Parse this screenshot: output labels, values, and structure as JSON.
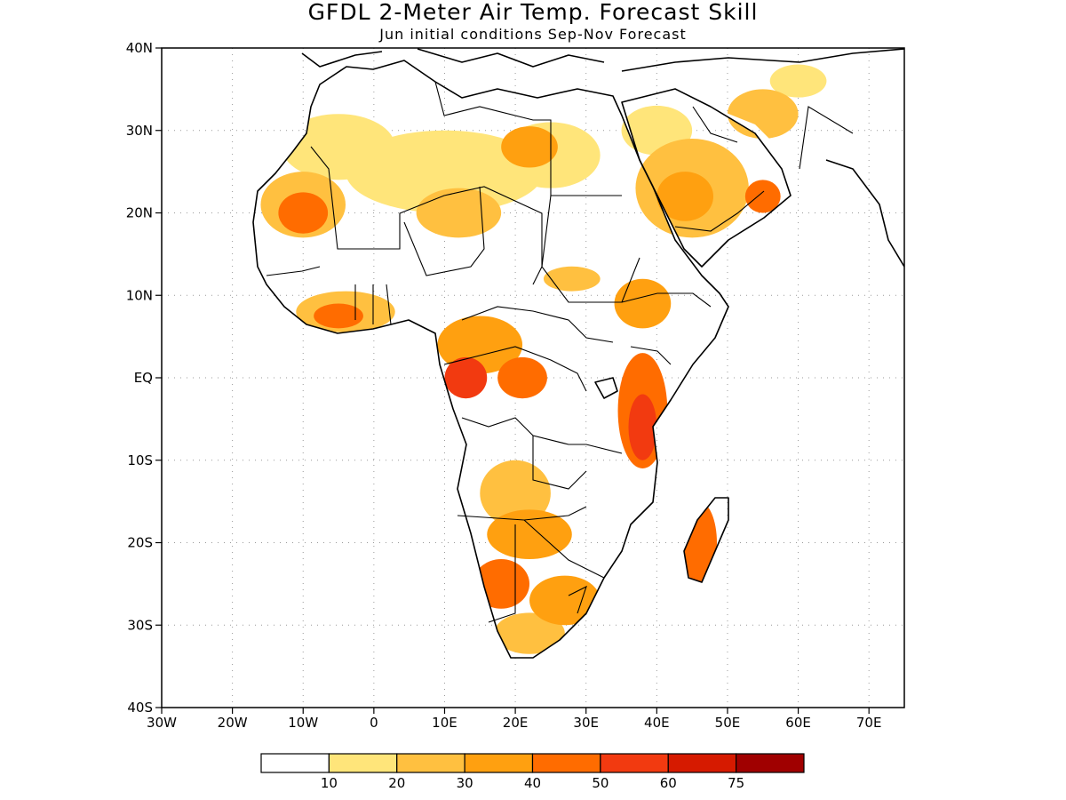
{
  "title": "GFDL 2-Meter Air Temp. Forecast Skill",
  "subtitle": "Jun initial conditions  Sep-Nov Forecast",
  "axes": {
    "lon_range": [
      -30,
      75
    ],
    "lat_range": [
      -40,
      40
    ],
    "lon_ticks": [
      {
        "value": -30,
        "label": "30W"
      },
      {
        "value": -20,
        "label": "20W"
      },
      {
        "value": -10,
        "label": "10W"
      },
      {
        "value": 0,
        "label": "0"
      },
      {
        "value": 10,
        "label": "10E"
      },
      {
        "value": 20,
        "label": "20E"
      },
      {
        "value": 30,
        "label": "30E"
      },
      {
        "value": 40,
        "label": "40E"
      },
      {
        "value": 50,
        "label": "50E"
      },
      {
        "value": 60,
        "label": "60E"
      },
      {
        "value": 70,
        "label": "70E"
      }
    ],
    "lat_ticks": [
      {
        "value": 40,
        "label": "40N"
      },
      {
        "value": 30,
        "label": "30N"
      },
      {
        "value": 20,
        "label": "20N"
      },
      {
        "value": 10,
        "label": "10N"
      },
      {
        "value": 0,
        "label": "EQ"
      },
      {
        "value": -10,
        "label": "10S"
      },
      {
        "value": -20,
        "label": "20S"
      },
      {
        "value": -30,
        "label": "30S"
      },
      {
        "value": -40,
        "label": "40S"
      }
    ],
    "grid": true
  },
  "colorbar": {
    "colors": [
      "#ffffff",
      "#ffe57a",
      "#ffc040",
      "#ffa010",
      "#ff6c00",
      "#f23a10",
      "#d61a00",
      "#a00000"
    ],
    "labels": [
      "10",
      "20",
      "30",
      "40",
      "50",
      "60",
      "75"
    ]
  },
  "skill_regions": [
    {
      "lon": 10,
      "lat": 25,
      "rx": 14,
      "ry": 5,
      "level": 1
    },
    {
      "lon": -5,
      "lat": 28,
      "rx": 8,
      "ry": 4,
      "level": 1
    },
    {
      "lon": 25,
      "lat": 27,
      "rx": 7,
      "ry": 4,
      "level": 1
    },
    {
      "lon": -10,
      "lat": 21,
      "rx": 6,
      "ry": 4,
      "level": 2
    },
    {
      "lon": -10,
      "lat": 20,
      "rx": 3.5,
      "ry": 2.5,
      "level": 4
    },
    {
      "lon": 12,
      "lat": 20,
      "rx": 6,
      "ry": 3,
      "level": 2
    },
    {
      "lon": 22,
      "lat": 28,
      "rx": 4,
      "ry": 2.5,
      "level": 3
    },
    {
      "lon": 45,
      "lat": 23,
      "rx": 8,
      "ry": 6,
      "level": 2
    },
    {
      "lon": 44,
      "lat": 22,
      "rx": 4,
      "ry": 3,
      "level": 3
    },
    {
      "lon": 55,
      "lat": 22,
      "rx": 2.5,
      "ry": 2,
      "level": 4
    },
    {
      "lon": 40,
      "lat": 30,
      "rx": 5,
      "ry": 3,
      "level": 1
    },
    {
      "lon": 55,
      "lat": 32,
      "rx": 5,
      "ry": 3,
      "level": 2
    },
    {
      "lon": 60,
      "lat": 36,
      "rx": 4,
      "ry": 2,
      "level": 1
    },
    {
      "lon": -4,
      "lat": 8,
      "rx": 7,
      "ry": 2.5,
      "level": 2
    },
    {
      "lon": -5,
      "lat": 7.5,
      "rx": 3.5,
      "ry": 1.5,
      "level": 4
    },
    {
      "lon": 15,
      "lat": 4,
      "rx": 6,
      "ry": 3.5,
      "level": 3
    },
    {
      "lon": 13,
      "lat": 0,
      "rx": 3,
      "ry": 2.5,
      "level": 5
    },
    {
      "lon": 21,
      "lat": 0,
      "rx": 3.5,
      "ry": 2.5,
      "level": 4
    },
    {
      "lon": 28,
      "lat": 12,
      "rx": 4,
      "ry": 1.5,
      "level": 2
    },
    {
      "lon": 38,
      "lat": 9,
      "rx": 4,
      "ry": 3,
      "level": 3
    },
    {
      "lon": 38,
      "lat": -4,
      "rx": 3.5,
      "ry": 7,
      "level": 4
    },
    {
      "lon": 38,
      "lat": -6,
      "rx": 2,
      "ry": 4,
      "level": 5
    },
    {
      "lon": 20,
      "lat": -14,
      "rx": 5,
      "ry": 4,
      "level": 2
    },
    {
      "lon": 22,
      "lat": -19,
      "rx": 6,
      "ry": 3,
      "level": 3
    },
    {
      "lon": 18,
      "lat": -25,
      "rx": 4,
      "ry": 3,
      "level": 4
    },
    {
      "lon": 27,
      "lat": -27,
      "rx": 5,
      "ry": 3,
      "level": 3
    },
    {
      "lon": 22,
      "lat": -31,
      "rx": 5,
      "ry": 2.5,
      "level": 2
    },
    {
      "lon": 46,
      "lat": -20,
      "rx": 2.5,
      "ry": 5,
      "level": 4
    }
  ]
}
